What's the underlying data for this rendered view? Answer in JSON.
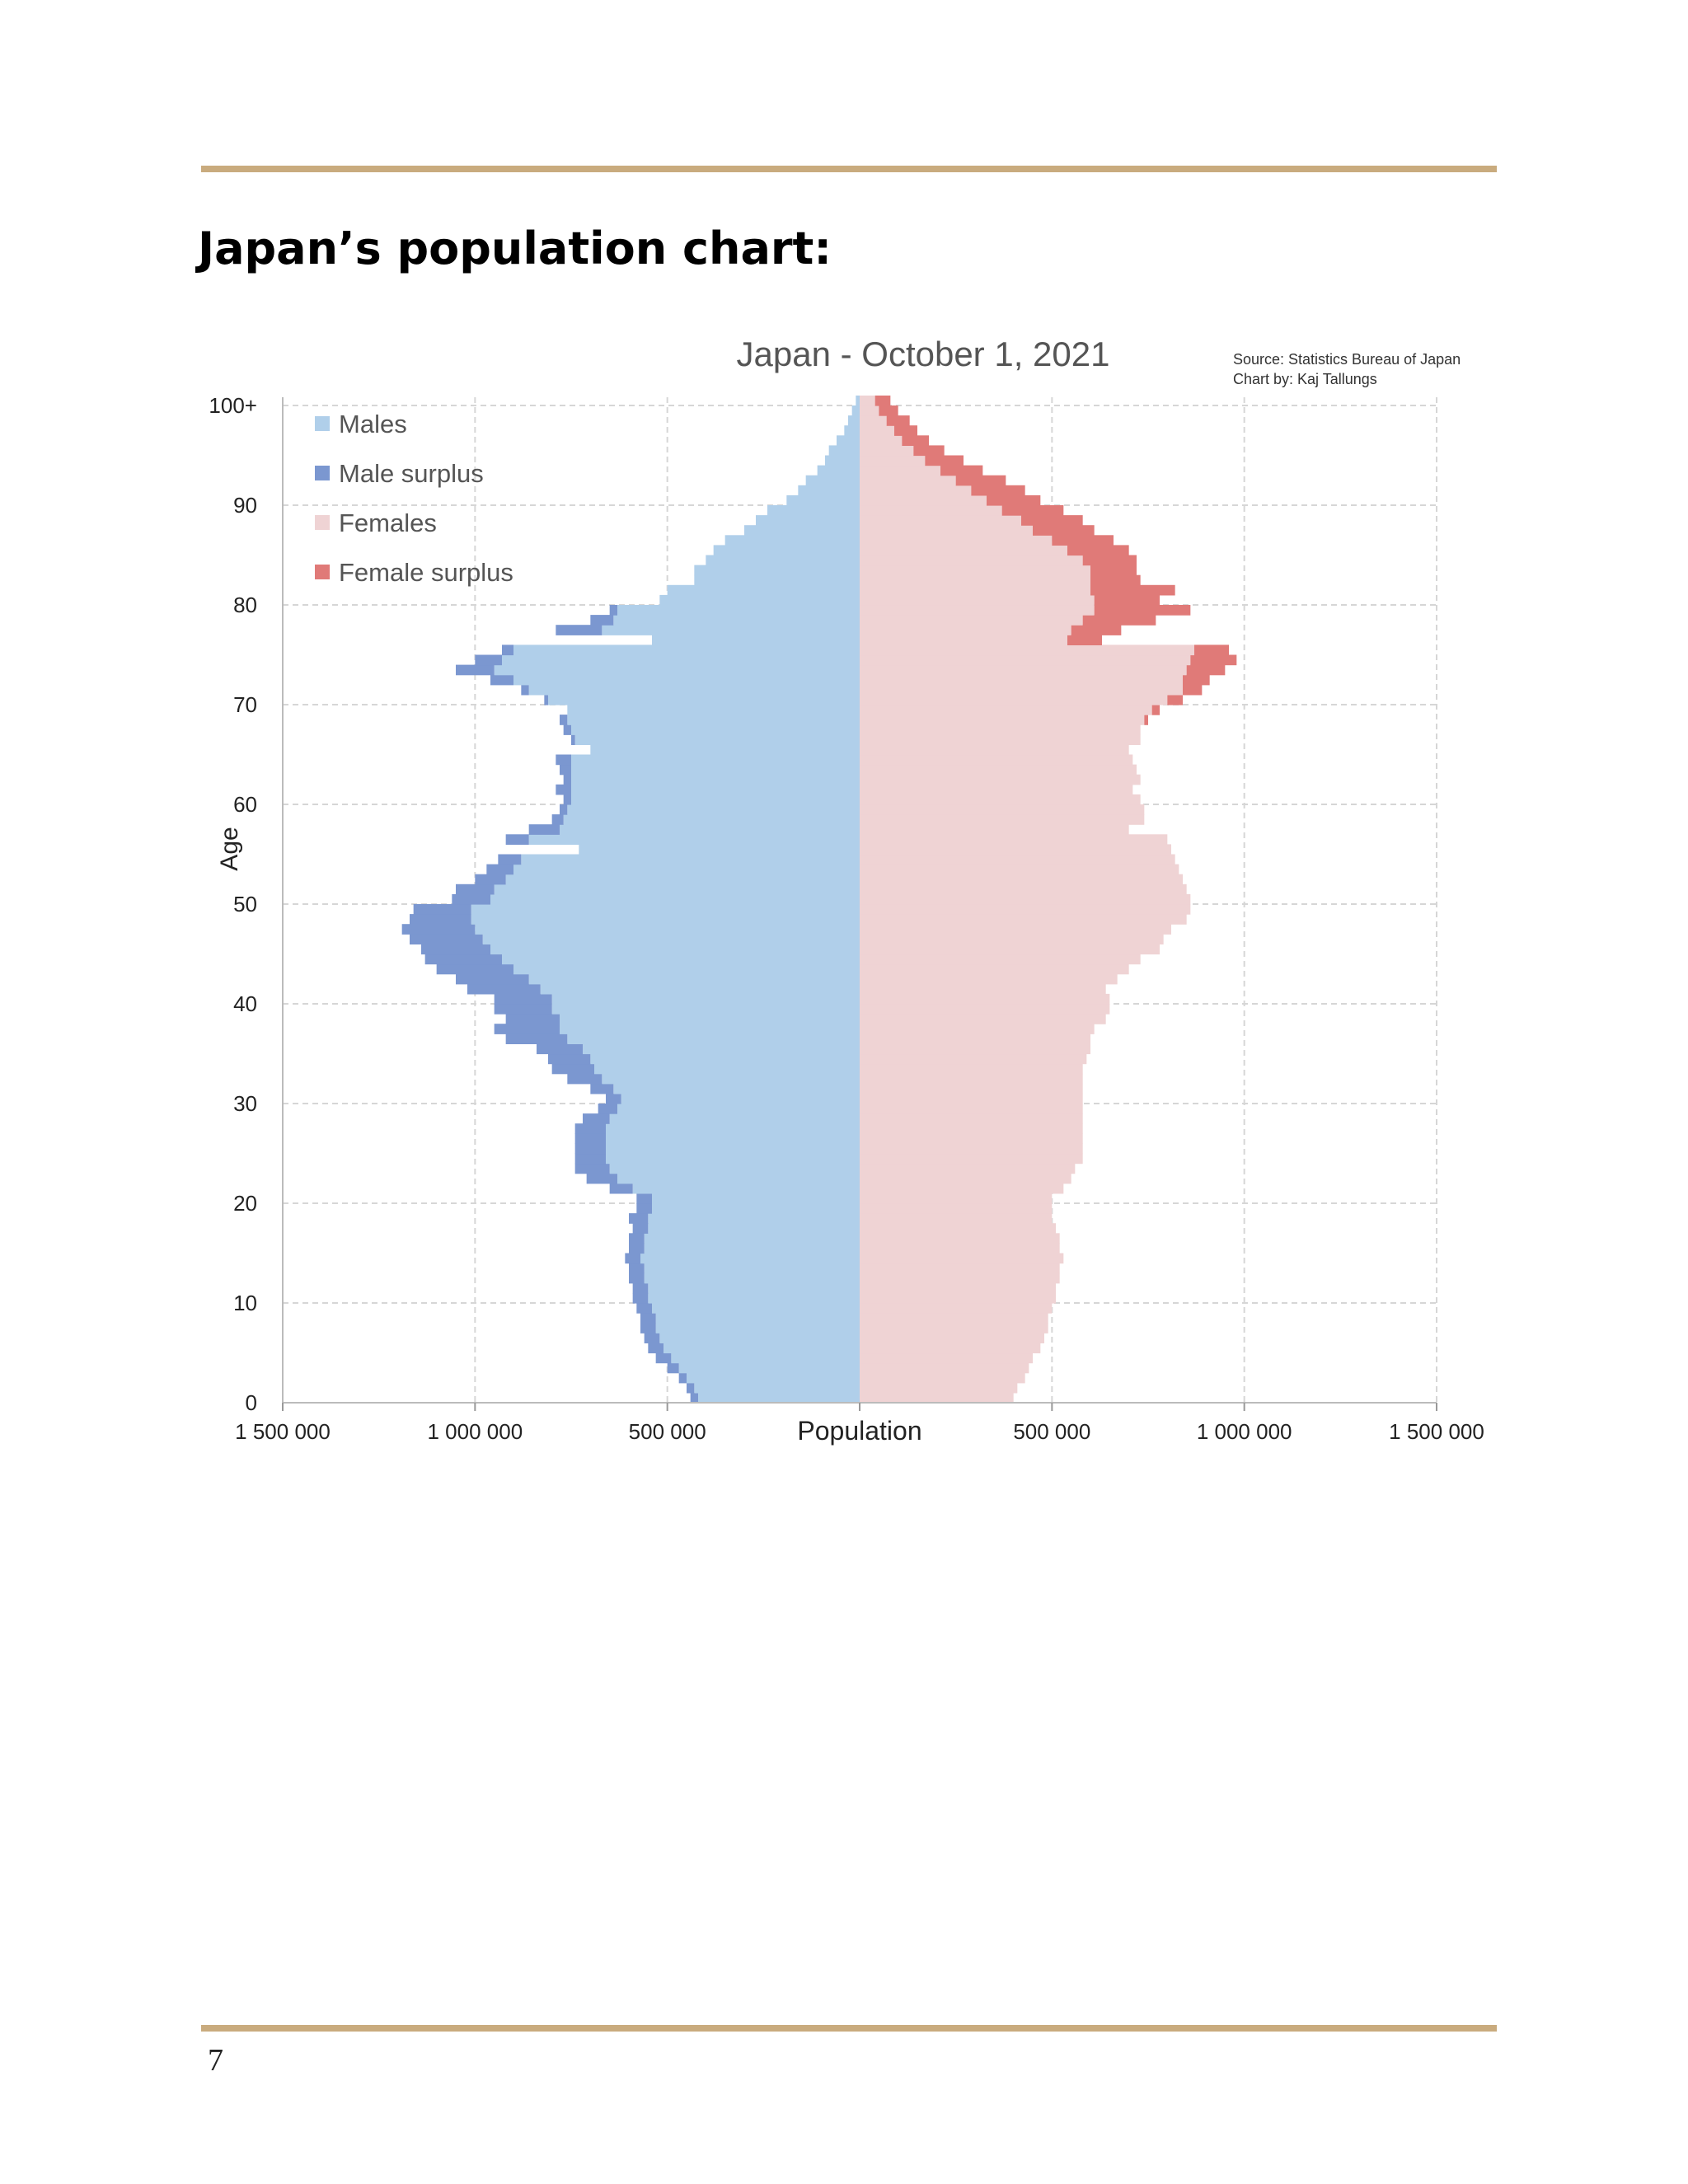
{
  "page": {
    "heading": "Japan’s population chart:",
    "page_number": "7",
    "rule_color": "#c9ab7e"
  },
  "chart_data": {
    "type": "bar",
    "orientation": "horizontal-population-pyramid",
    "title": "Japan - October 1, 2021",
    "source": "Source: Statistics Bureau of Japan",
    "credit": "Chart by: Kaj Tallungs",
    "xlabel": "Population",
    "ylabel": "Age",
    "xlim": [
      -1500000,
      1500000
    ],
    "ylim": [
      0,
      100
    ],
    "x_ticks": [
      -1500000,
      -1000000,
      -500000,
      0,
      500000,
      1000000,
      1500000
    ],
    "x_tick_labels": [
      "1 500 000",
      "1 000 000",
      "500 000",
      "",
      "500 000",
      "1 000 000",
      "1 500 000"
    ],
    "y_ticks": [
      0,
      10,
      20,
      30,
      40,
      50,
      60,
      70,
      80,
      90,
      100
    ],
    "y_tick_labels": [
      "0",
      "10",
      "20",
      "30",
      "40",
      "50",
      "60",
      "70",
      "80",
      "90",
      "100+"
    ],
    "grid": true,
    "legend_position": "top-left",
    "legend": [
      {
        "label": "Males",
        "color": "#b0cfea"
      },
      {
        "label": "Male surplus",
        "color": "#7b97d0"
      },
      {
        "label": "Females",
        "color": "#efd3d4"
      },
      {
        "label": "Female surplus",
        "color": "#e07a78"
      }
    ],
    "ages": [
      0,
      1,
      2,
      3,
      4,
      5,
      6,
      7,
      8,
      9,
      10,
      11,
      12,
      13,
      14,
      15,
      16,
      17,
      18,
      19,
      20,
      21,
      22,
      23,
      24,
      25,
      26,
      27,
      28,
      29,
      30,
      31,
      32,
      33,
      34,
      35,
      36,
      37,
      38,
      39,
      40,
      41,
      42,
      43,
      44,
      45,
      46,
      47,
      48,
      49,
      50,
      51,
      52,
      53,
      54,
      55,
      56,
      57,
      58,
      59,
      60,
      61,
      62,
      63,
      64,
      65,
      66,
      67,
      68,
      69,
      70,
      71,
      72,
      73,
      74,
      75,
      76,
      77,
      78,
      79,
      80,
      81,
      82,
      83,
      84,
      85,
      86,
      87,
      88,
      89,
      90,
      91,
      92,
      93,
      94,
      95,
      96,
      97,
      98,
      99,
      100
    ],
    "series": [
      {
        "name": "Males",
        "values": [
          420000,
          430000,
          450000,
          470000,
          490000,
          510000,
          520000,
          530000,
          530000,
          540000,
          550000,
          550000,
          560000,
          560000,
          570000,
          560000,
          560000,
          550000,
          550000,
          540000,
          540000,
          590000,
          630000,
          650000,
          660000,
          660000,
          660000,
          660000,
          650000,
          630000,
          620000,
          640000,
          670000,
          690000,
          700000,
          720000,
          760000,
          780000,
          780000,
          800000,
          800000,
          830000,
          860000,
          900000,
          930000,
          960000,
          980000,
          1000000,
          1010000,
          1010000,
          960000,
          950000,
          920000,
          900000,
          880000,
          730000,
          860000,
          780000,
          770000,
          760000,
          750000,
          750000,
          750000,
          750000,
          750000,
          700000,
          740000,
          750000,
          760000,
          760000,
          810000,
          860000,
          900000,
          950000,
          930000,
          900000,
          540000,
          670000,
          640000,
          630000,
          520000,
          500000,
          430000,
          430000,
          400000,
          380000,
          350000,
          300000,
          270000,
          240000,
          190000,
          160000,
          140000,
          110000,
          90000,
          80000,
          60000,
          40000,
          30000,
          20000,
          10000
        ]
      },
      {
        "name": "Females",
        "values": [
          400000,
          410000,
          430000,
          440000,
          450000,
          470000,
          480000,
          490000,
          490000,
          500000,
          510000,
          510000,
          520000,
          520000,
          530000,
          520000,
          520000,
          510000,
          500000,
          500000,
          500000,
          530000,
          550000,
          560000,
          580000,
          580000,
          580000,
          580000,
          580000,
          580000,
          580000,
          580000,
          580000,
          580000,
          590000,
          600000,
          600000,
          610000,
          640000,
          650000,
          650000,
          640000,
          670000,
          700000,
          730000,
          780000,
          790000,
          810000,
          850000,
          860000,
          860000,
          850000,
          840000,
          830000,
          820000,
          810000,
          800000,
          700000,
          740000,
          740000,
          730000,
          710000,
          730000,
          720000,
          710000,
          700000,
          730000,
          730000,
          740000,
          760000,
          800000,
          840000,
          840000,
          850000,
          860000,
          870000,
          540000,
          550000,
          580000,
          610000,
          610000,
          600000,
          600000,
          600000,
          580000,
          540000,
          500000,
          450000,
          420000,
          370000,
          330000,
          290000,
          250000,
          210000,
          170000,
          140000,
          110000,
          90000,
          70000,
          50000,
          40000
        ]
      },
      {
        "name": "Male surplus",
        "values": [
          20000,
          20000,
          20000,
          30000,
          40000,
          40000,
          40000,
          40000,
          40000,
          40000,
          40000,
          40000,
          40000,
          40000,
          40000,
          40000,
          40000,
          40000,
          50000,
          40000,
          40000,
          60000,
          80000,
          90000,
          80000,
          80000,
          80000,
          80000,
          70000,
          50000,
          40000,
          60000,
          90000,
          110000,
          110000,
          120000,
          160000,
          170000,
          140000,
          150000,
          150000,
          190000,
          190000,
          200000,
          200000,
          180000,
          190000,
          190000,
          160000,
          150000,
          100000,
          100000,
          80000,
          70000,
          60000,
          0,
          60000,
          80000,
          30000,
          20000,
          20000,
          40000,
          20000,
          30000,
          40000,
          0,
          10000,
          20000,
          20000,
          0,
          10000,
          20000,
          60000,
          100000,
          70000,
          30000,
          0,
          120000,
          60000,
          20000,
          0,
          0,
          0,
          0,
          0,
          0,
          0,
          0,
          0,
          0,
          0,
          0,
          0,
          0,
          0,
          0,
          0,
          0,
          0,
          0,
          0
        ]
      },
      {
        "name": "Female surplus",
        "values": [
          0,
          0,
          0,
          0,
          0,
          0,
          0,
          0,
          0,
          0,
          0,
          0,
          0,
          0,
          0,
          0,
          0,
          0,
          0,
          0,
          0,
          0,
          0,
          0,
          0,
          0,
          0,
          0,
          0,
          0,
          0,
          0,
          0,
          0,
          0,
          0,
          0,
          0,
          0,
          0,
          0,
          0,
          0,
          0,
          0,
          0,
          0,
          0,
          0,
          0,
          0,
          0,
          0,
          0,
          0,
          0,
          0,
          0,
          0,
          0,
          0,
          0,
          0,
          0,
          0,
          0,
          0,
          0,
          0,
          0,
          0,
          0,
          0,
          0,
          0,
          0,
          0,
          0,
          0,
          0,
          0,
          0,
          0,
          0,
          0,
          0,
          0,
          0,
          0,
          0,
          0,
          0,
          0,
          0,
          0,
          0,
          0,
          0,
          0,
          0,
          0
        ]
      }
    ],
    "female_surplus": [
      0,
      0,
      0,
      0,
      0,
      0,
      0,
      0,
      0,
      0,
      0,
      0,
      0,
      0,
      0,
      0,
      0,
      0,
      0,
      0,
      0,
      0,
      0,
      0,
      0,
      0,
      0,
      0,
      0,
      0,
      0,
      0,
      0,
      0,
      0,
      0,
      0,
      0,
      0,
      0,
      0,
      0,
      0,
      0,
      0,
      0,
      0,
      0,
      0,
      0,
      0,
      0,
      0,
      0,
      0,
      0,
      0,
      0,
      0,
      0,
      0,
      0,
      0,
      0,
      0,
      0,
      0,
      0,
      10000,
      20000,
      40000,
      50000,
      70000,
      100000,
      120000,
      90000,
      90000,
      130000,
      190000,
      250000,
      170000,
      220000,
      130000,
      120000,
      140000,
      160000,
      160000,
      160000,
      160000,
      160000,
      140000,
      140000,
      130000,
      110000,
      100000,
      80000,
      70000,
      60000,
      60000,
      50000,
      40000
    ]
  }
}
